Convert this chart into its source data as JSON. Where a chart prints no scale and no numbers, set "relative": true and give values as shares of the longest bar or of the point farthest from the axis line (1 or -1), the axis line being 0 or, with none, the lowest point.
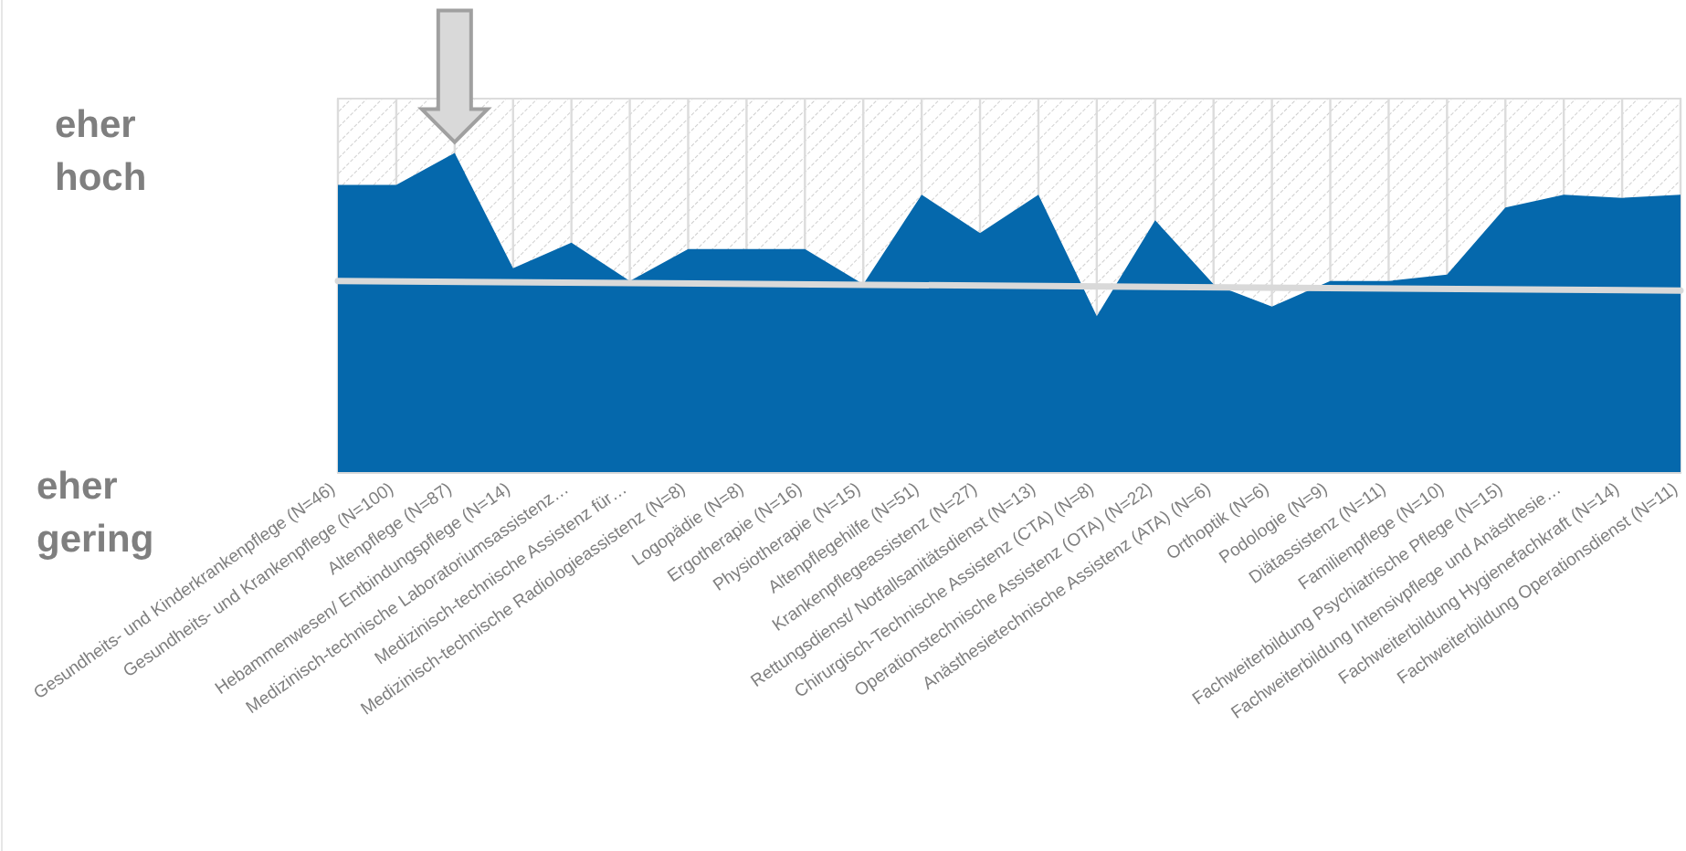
{
  "chart_data": {
    "type": "area",
    "relative": true,
    "grid": "x",
    "tick_labels": "x",
    "annotations": [
      "eher hoch",
      "eher gering"
    ],
    "categories": [
      "Gesundheits- und Kinderkrankenpflege (N=46)",
      "Gesundheits- und Krankenpflege (N=100)",
      "Altenpflege (N=87)",
      "Hebammenwesen/ Entbindungspflege (N=14)",
      "Medizinisch-technische Laboratoriumsassistenz…",
      "Medizinisch-technische Assistenz für…",
      "Medizinisch-technische Radiologieassistenz (N=8)",
      "Logopädie (N=8)",
      "Ergotherapie (N=16)",
      "Physiotherapie (N=15)",
      "Altenpflegehilfe (N=51)",
      "Krankenpflegeassistenz (N=27)",
      "Rettungsdienst/ Notfallsanitätsdienst (N=13)",
      "Chirurgisch-Technische Assistenz (CTA) (N=8)",
      "Operationstechnische Assistenz (OTA) (N=22)",
      "Anästhesietechnische Assistenz (ATA) (N=6)",
      "Orthoptik (N=6)",
      "Podologie (N=9)",
      "Diätassistenz (N=11)",
      "Familienpflege (N=10)",
      "Fachweiterbildung Psychiatrische Pflege (N=15)",
      "Fachweiterbildung Intensivpflege und Anästhesie…",
      "Fachweiterbildung Hygienefachkraft (N=14)",
      "Fachweiterbildung Operationsdienst (N=11)"
    ],
    "series": [
      {
        "color": "#0568ac",
        "values": [
          0.9,
          0.9,
          1,
          0.64,
          0.72,
          0.6,
          0.7,
          0.7,
          0.7,
          0.59,
          0.87,
          0.75,
          0.87,
          0.49,
          0.79,
          0.59,
          0.52,
          0.6,
          0.6,
          0.62,
          0.83,
          0.87,
          0.86,
          0.87
        ]
      },
      {
        "type": "line",
        "color": "#d9d9d9",
        "values": [
          0.6,
          null,
          null,
          null,
          null,
          null,
          null,
          null,
          null,
          null,
          null,
          null,
          null,
          null,
          null,
          null,
          null,
          null,
          null,
          null,
          null,
          null,
          null,
          0.57
        ]
      }
    ]
  }
}
